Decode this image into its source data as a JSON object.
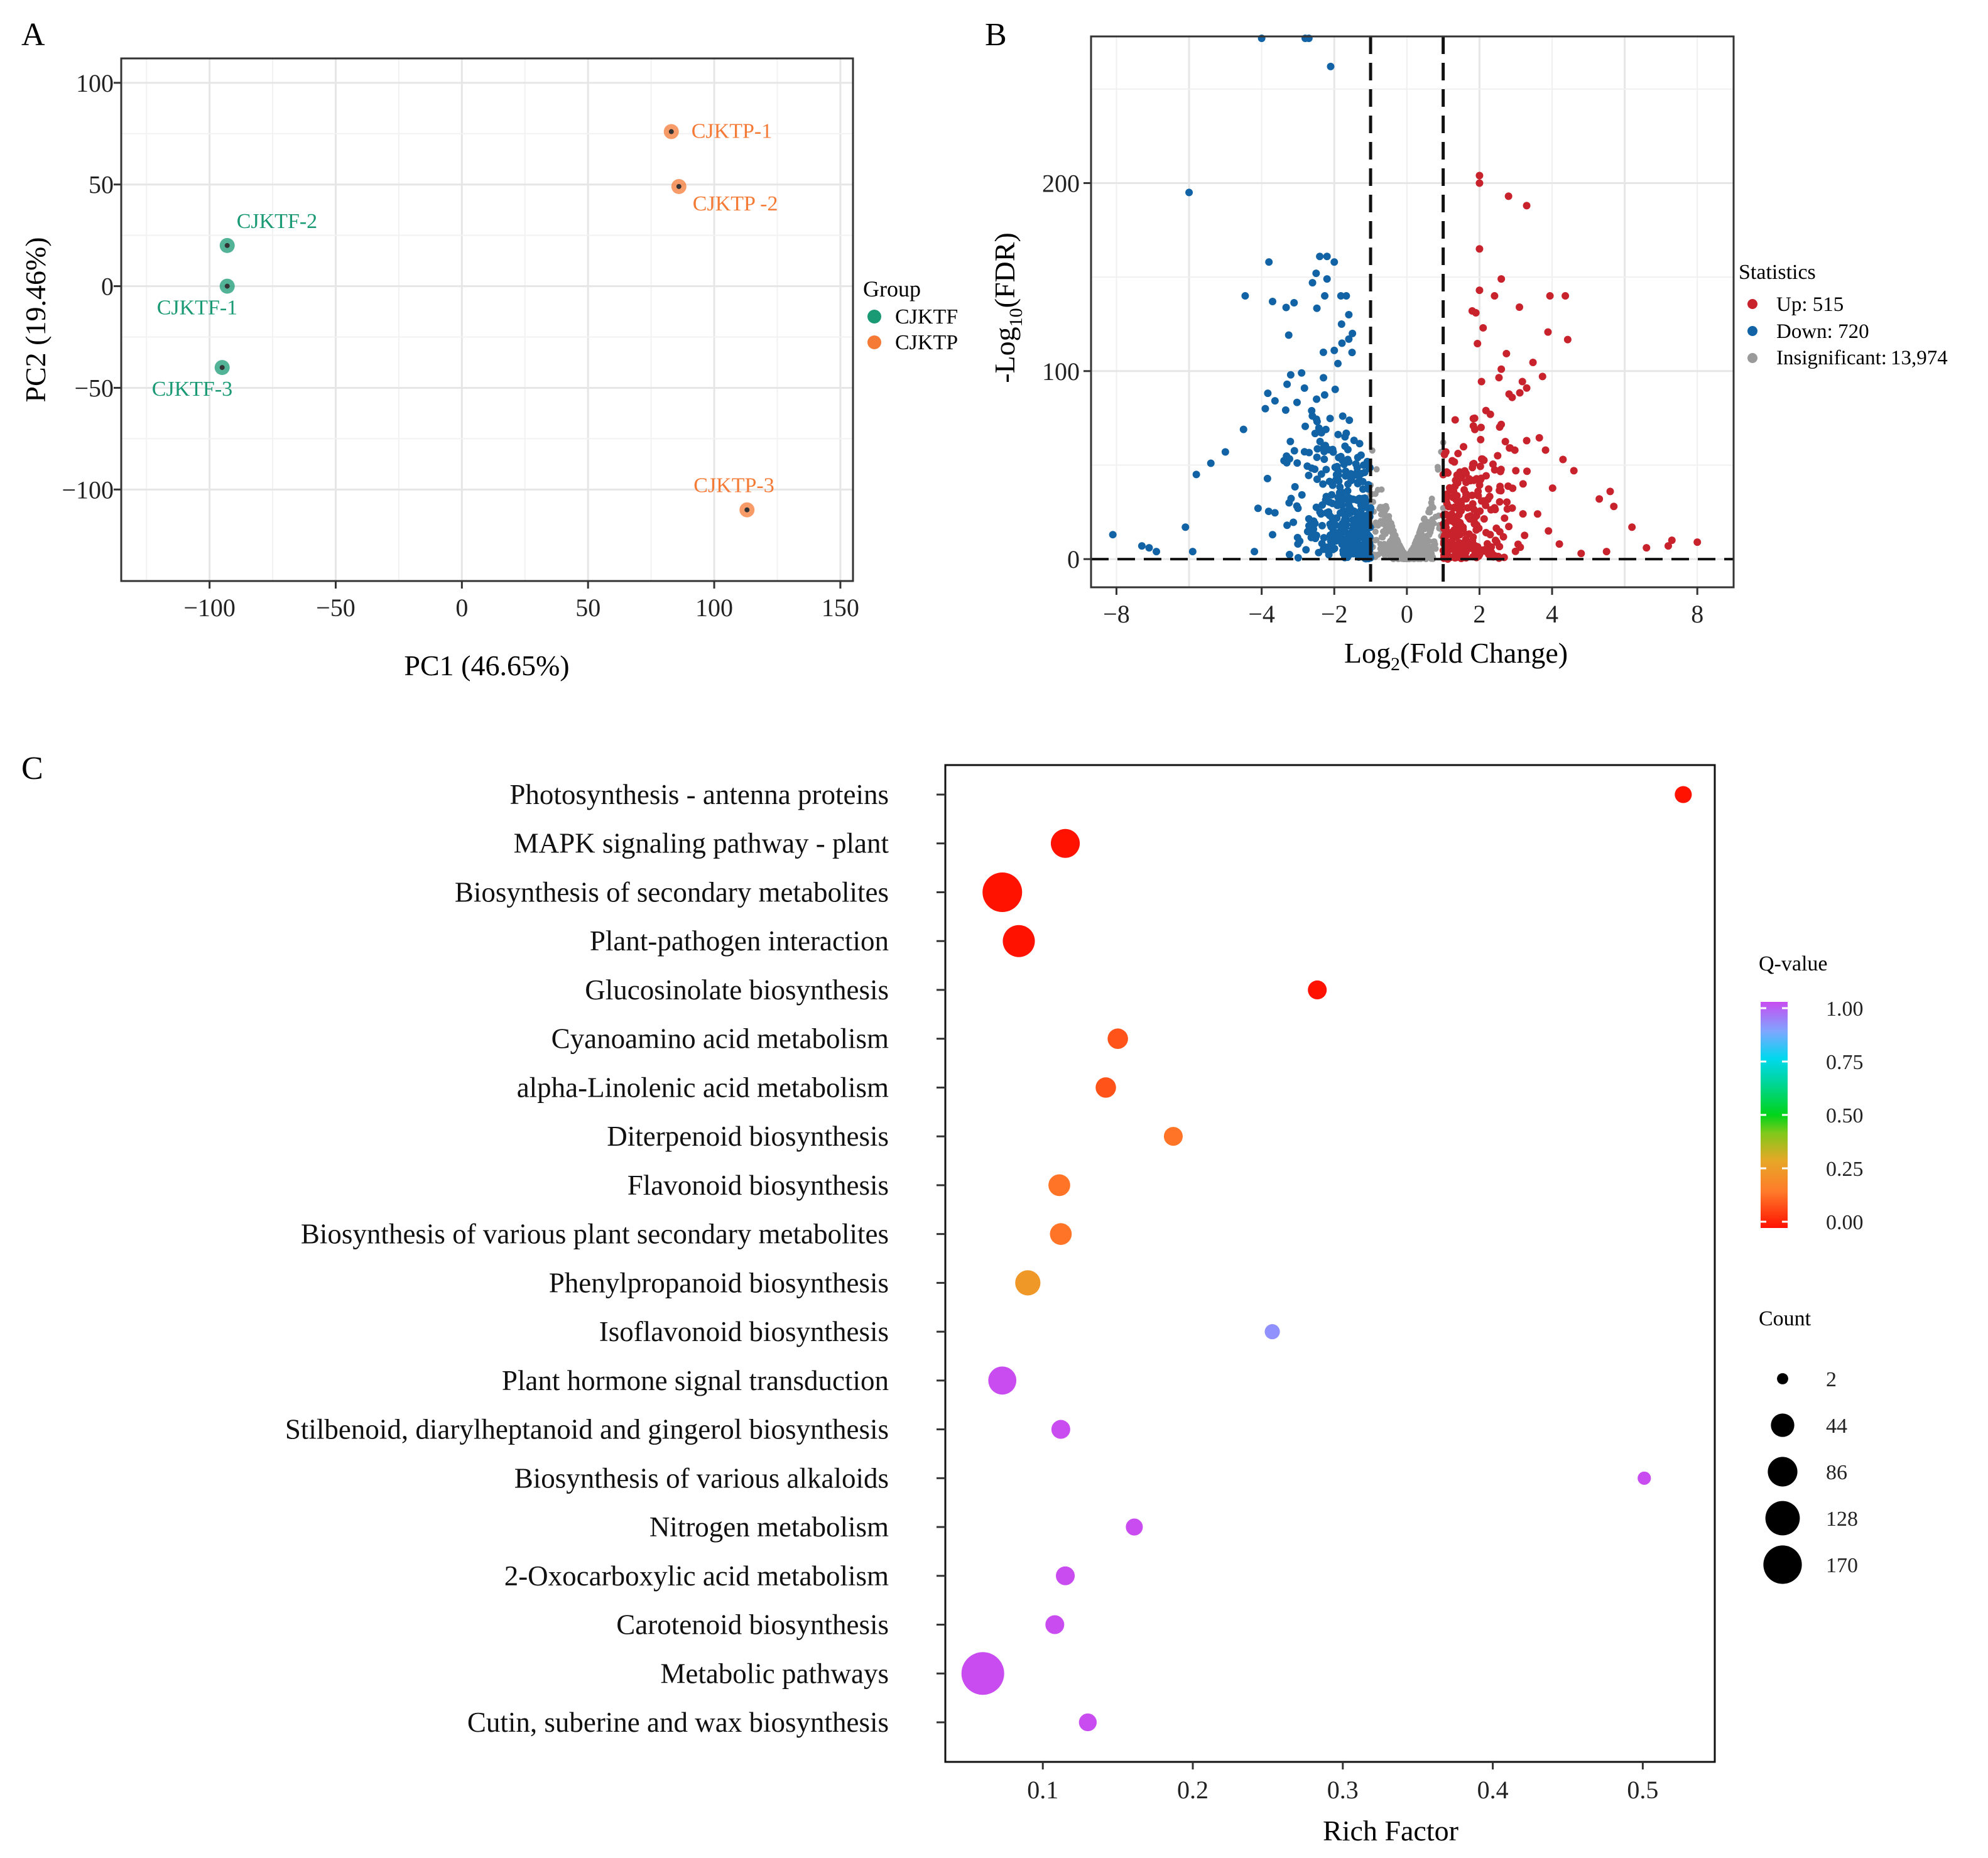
{
  "colors": {
    "cjktf": "#1a9a74",
    "cjktp": "#f47a35",
    "up": "#c8222c",
    "down": "#1263a5",
    "insig": "#9a9a9a",
    "grid": "#e6e6e6",
    "axis": "#333333"
  },
  "chart_data": [
    {
      "panel": "A",
      "type": "scatter",
      "title": "",
      "xlabel": "PC1 (46.65%)",
      "ylabel": "PC2 (19.46%)",
      "xlim": [
        -135,
        155
      ],
      "ylim": [
        -145,
        112
      ],
      "xticks": [
        -100,
        -50,
        0,
        50,
        100,
        150
      ],
      "yticks": [
        100,
        50,
        0,
        -50,
        -100
      ],
      "xtick_labels": [
        "−100",
        "−50",
        "0",
        "50",
        "100",
        "150"
      ],
      "ytick_labels": [
        "100",
        "50",
        "0",
        "−50",
        "−100"
      ],
      "legend_title": "Group",
      "legend_position": "right",
      "legend": [
        {
          "label": "CJKTF",
          "color_key": "cjktf"
        },
        {
          "label": "CJKTP",
          "color_key": "cjktp"
        }
      ],
      "points": [
        {
          "label": "CJKTF-1",
          "group": "CJKTF",
          "x": -93,
          "y": 0,
          "anchor": "below"
        },
        {
          "label": "CJKTF-2",
          "group": "CJKTF",
          "x": -93,
          "y": 20,
          "anchor": "above-right"
        },
        {
          "label": "CJKTF-3",
          "group": "CJKTF",
          "x": -95,
          "y": -40,
          "anchor": "below"
        },
        {
          "label": "CJKTP-1",
          "group": "CJKTP",
          "x": 83,
          "y": 76,
          "anchor": "right"
        },
        {
          "label": "CJKTP -2",
          "group": "CJKTP",
          "x": 86,
          "y": 49,
          "anchor": "below-right"
        },
        {
          "label": "CJKTP-3",
          "group": "CJKTP",
          "x": 113,
          "y": -110,
          "anchor": "above"
        }
      ]
    },
    {
      "panel": "B",
      "type": "scatter",
      "subtype": "volcano",
      "xlabel": "Log2(Fold Change)",
      "xlabel_base": "Log",
      "xlabel_sub": "2",
      "xlabel_tail": "(Fold Change)",
      "ylabel": "-Log10(FDR)",
      "ylabel_base": "-Log",
      "ylabel_sub": "10",
      "ylabel_tail": "(FDR)",
      "xlim": [
        -8.7,
        9.0
      ],
      "ylim": [
        -15,
        278
      ],
      "xticks": [
        -8,
        -4,
        -2,
        0,
        2,
        4,
        8
      ],
      "yticks": [
        0,
        100,
        200
      ],
      "xtick_labels": [
        "−8",
        "−4",
        "−2",
        "0",
        "2",
        "4",
        "8"
      ],
      "ytick_labels": [
        "0",
        "100",
        "200"
      ],
      "thresholds": {
        "log2fc": [
          -1,
          1
        ],
        "fdr_line_y": 0
      },
      "legend_title": "Statistics",
      "legend_position": "right",
      "legend": [
        {
          "label": "Up: 515",
          "color_key": "up"
        },
        {
          "label": "Down: 720",
          "color_key": "down"
        },
        {
          "label": "Insignificant:",
          "value": "13,974",
          "color_key": "insig"
        }
      ],
      "counts": {
        "up": 515,
        "down": 720,
        "insignificant": 13974
      },
      "highlight_points": {
        "up": [
          [
            2.0,
            204
          ],
          [
            2.0,
            200
          ],
          [
            2.8,
            193
          ],
          [
            3.3,
            188
          ],
          [
            2.0,
            165
          ],
          [
            2.6,
            149
          ],
          [
            2.0,
            143
          ],
          [
            3.1,
            134
          ],
          [
            1.8,
            132
          ],
          [
            1.9,
            131
          ],
          [
            2.1,
            123
          ],
          [
            2.6,
            101
          ],
          [
            3.3,
            91
          ],
          [
            3.3,
            63
          ],
          [
            4.3,
            53
          ],
          [
            4.6,
            47
          ],
          [
            5.6,
            36
          ],
          [
            5.3,
            32
          ],
          [
            5.7,
            28
          ],
          [
            6.2,
            17
          ],
          [
            7.3,
            10
          ],
          [
            7.2,
            7
          ],
          [
            8.0,
            9
          ],
          [
            6.6,
            6
          ],
          [
            4.2,
            8
          ],
          [
            5.5,
            4
          ],
          [
            4.8,
            3
          ],
          [
            3.9,
            15
          ],
          [
            3.6,
            24
          ],
          [
            3.2,
            40
          ],
          [
            3.0,
            47
          ],
          [
            2.5,
            55
          ],
          [
            2.3,
            77
          ],
          [
            2.9,
            86
          ]
        ],
        "down": [
          [
            -2.7,
            277
          ],
          [
            -2.8,
            277
          ],
          [
            -4.0,
            277
          ],
          [
            -2.1,
            262
          ],
          [
            -6.0,
            195
          ],
          [
            -3.8,
            158
          ],
          [
            -2.2,
            161
          ],
          [
            -2.4,
            161
          ],
          [
            -2.0,
            158
          ],
          [
            -2.5,
            152
          ],
          [
            -2.2,
            149
          ],
          [
            -2.6,
            147
          ],
          [
            -3.7,
            137
          ],
          [
            -1.6,
            130
          ],
          [
            -1.8,
            125
          ],
          [
            -1.5,
            120
          ],
          [
            -1.6,
            117
          ],
          [
            -2.0,
            111
          ],
          [
            -2.3,
            110
          ],
          [
            -1.9,
            104
          ],
          [
            -3.2,
            98
          ],
          [
            -2.9,
            99
          ],
          [
            -3.3,
            93
          ],
          [
            -3.9,
            80
          ],
          [
            -4.5,
            69
          ],
          [
            -5.0,
            57
          ],
          [
            -5.4,
            51
          ],
          [
            -5.8,
            45
          ],
          [
            -8.1,
            13
          ],
          [
            -7.3,
            7
          ],
          [
            -7.1,
            6
          ],
          [
            -6.1,
            17
          ],
          [
            -5.9,
            4
          ],
          [
            -6.9,
            4
          ],
          [
            -4.2,
            4
          ],
          [
            -3.7,
            13
          ],
          [
            -3.3,
            18
          ],
          [
            -3.0,
            27
          ],
          [
            -4.1,
            27
          ]
        ]
      }
    },
    {
      "panel": "C",
      "type": "scatter",
      "subtype": "bubble",
      "xlabel": "Rich Factor",
      "ylabel": "",
      "xlim": [
        0.035,
        0.548
      ],
      "xticks": [
        0.1,
        0.2,
        0.3,
        0.4,
        0.5
      ],
      "xtick_labels": [
        "0.1",
        "0.2",
        "0.3",
        "0.4",
        "0.5"
      ],
      "color_legend_title": "Q-value",
      "color_legend_ticks": [
        "1.00",
        "0.75",
        "0.50",
        "0.25",
        "0.00"
      ],
      "size_legend_title": "Count",
      "size_legend_ticks": [
        "2",
        "44",
        "86",
        "128",
        "170"
      ],
      "size_legend_values": [
        2,
        44,
        86,
        128,
        170
      ],
      "legend_position": "right",
      "pathways": [
        {
          "name": "Photosynthesis - antenna proteins",
          "rich_factor": 0.527,
          "qvalue": 0.0,
          "count": 10
        },
        {
          "name": "MAPK signaling pathway - plant",
          "rich_factor": 0.115,
          "qvalue": 0.0,
          "count": 60
        },
        {
          "name": "Biosynthesis of secondary metabolites",
          "rich_factor": 0.073,
          "qvalue": 0.0,
          "count": 140
        },
        {
          "name": "Plant-pathogen interaction",
          "rich_factor": 0.084,
          "qvalue": 0.0,
          "count": 80
        },
        {
          "name": "Glucosinolate biosynthesis",
          "rich_factor": 0.283,
          "qvalue": 0.0,
          "count": 15
        },
        {
          "name": "Cyanoamino acid metabolism",
          "rich_factor": 0.15,
          "qvalue": 0.1,
          "count": 20
        },
        {
          "name": "alpha-Linolenic acid metabolism",
          "rich_factor": 0.142,
          "qvalue": 0.1,
          "count": 20
        },
        {
          "name": "Diterpenoid biosynthesis",
          "rich_factor": 0.187,
          "qvalue": 0.15,
          "count": 15
        },
        {
          "name": "Flavonoid biosynthesis",
          "rich_factor": 0.111,
          "qvalue": 0.15,
          "count": 25
        },
        {
          "name": "Biosynthesis of various plant secondary metabolites",
          "rich_factor": 0.112,
          "qvalue": 0.15,
          "count": 25
        },
        {
          "name": "Phenylpropanoid biosynthesis",
          "rich_factor": 0.09,
          "qvalue": 0.25,
          "count": 40
        },
        {
          "name": "Isoflavonoid biosynthesis",
          "rich_factor": 0.253,
          "qvalue": 0.9,
          "count": 6
        },
        {
          "name": "Plant hormone signal transduction",
          "rich_factor": 0.073,
          "qvalue": 1.0,
          "count": 55
        },
        {
          "name": "Stilbenoid, diarylheptanoid and gingerol biosynthesis",
          "rich_factor": 0.112,
          "qvalue": 1.0,
          "count": 15
        },
        {
          "name": "Biosynthesis of various alkaloids",
          "rich_factor": 0.501,
          "qvalue": 1.0,
          "count": 3
        },
        {
          "name": "Nitrogen metabolism",
          "rich_factor": 0.161,
          "qvalue": 1.0,
          "count": 10
        },
        {
          "name": "2-Oxocarboxylic acid metabolism",
          "rich_factor": 0.115,
          "qvalue": 1.0,
          "count": 15
        },
        {
          "name": "Carotenoid biosynthesis",
          "rich_factor": 0.108,
          "qvalue": 1.0,
          "count": 15
        },
        {
          "name": "Metabolic pathways",
          "rich_factor": 0.06,
          "qvalue": 1.0,
          "count": 170
        },
        {
          "name": "Cutin, suberine and wax biosynthesis",
          "rich_factor": 0.13,
          "qvalue": 1.0,
          "count": 12
        }
      ]
    }
  ],
  "panel_labels": [
    "A",
    "B",
    "C"
  ]
}
